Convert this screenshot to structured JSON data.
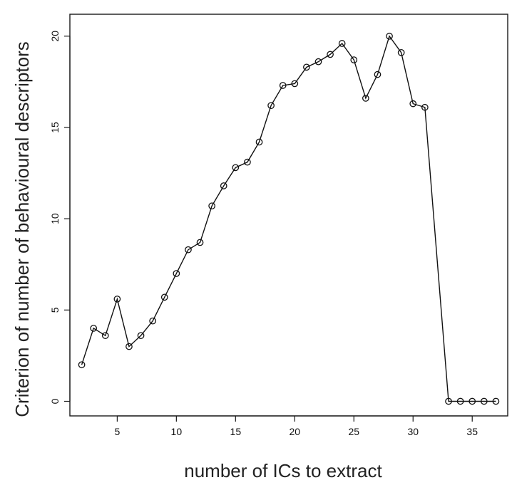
{
  "chart_data": {
    "type": "line",
    "title": "",
    "xlabel": "number of ICs to extract",
    "ylabel": "Criterion of number of behavioural descriptors",
    "xlim": [
      1,
      38
    ],
    "ylim": [
      -0.8,
      21.2
    ],
    "x_ticks": [
      5,
      10,
      15,
      20,
      25,
      30,
      35
    ],
    "y_ticks": [
      0,
      5,
      10,
      15,
      20
    ],
    "grid": false,
    "legend": "none",
    "markers": "open-circle",
    "series": [
      {
        "x": [
          2,
          3,
          4,
          5,
          6,
          7,
          8,
          9,
          10,
          11,
          12,
          13,
          14,
          15,
          16,
          17,
          18,
          19,
          20,
          21,
          22,
          23,
          24,
          25,
          26,
          27,
          28,
          29,
          30,
          31,
          33,
          34,
          35,
          36,
          37
        ],
        "values": [
          2.0,
          4.0,
          3.6,
          5.6,
          3.0,
          3.6,
          4.4,
          5.7,
          7.0,
          8.3,
          8.7,
          10.7,
          11.8,
          12.8,
          13.1,
          14.2,
          16.2,
          17.3,
          17.4,
          18.3,
          18.6,
          19.0,
          19.6,
          18.7,
          16.6,
          17.9,
          20.0,
          19.1,
          16.3,
          16.1,
          0.0,
          0.0,
          0.0,
          0.0,
          0.0
        ]
      }
    ]
  }
}
